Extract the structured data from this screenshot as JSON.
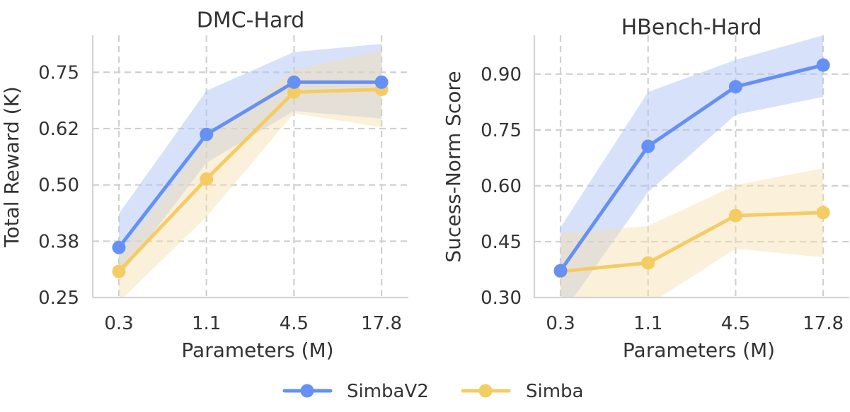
{
  "colors": {
    "SimbaV2": "#6590F5",
    "Simba": "#F5CC64",
    "SimbaV2_band": "#AFC3F5",
    "Simba_band": "#F6DFAE",
    "grid": "#d0d0d0",
    "text": "#333333"
  },
  "legend": {
    "position": "bottom-center",
    "items": [
      {
        "label": "SimbaV2",
        "series": "SimbaV2"
      },
      {
        "label": "Simba",
        "series": "Simba"
      }
    ]
  },
  "chart_data": [
    {
      "type": "line",
      "title": "DMC-Hard",
      "xlabel": "Parameters (M)",
      "ylabel": "Total Reward (K)",
      "categories": [
        "0.3",
        "1.1",
        "4.5",
        "17.8"
      ],
      "yticks": [
        0.25,
        0.375,
        0.5,
        0.625,
        0.75
      ],
      "ytick_labels": [
        "0.25",
        "0.38",
        "0.50",
        "0.62",
        "0.75"
      ],
      "ylim": [
        0.25,
        0.832
      ],
      "grid": true,
      "series": [
        {
          "name": "SimbaV2",
          "values": [
            0.361,
            0.612,
            0.728,
            0.728
          ],
          "band_upper": [
            0.436,
            0.709,
            0.795,
            0.813
          ],
          "band_lower": [
            0.294,
            0.549,
            0.664,
            0.647
          ]
        },
        {
          "name": "Simba",
          "values": [
            0.308,
            0.513,
            0.706,
            0.712
          ],
          "band_upper": [
            0.345,
            0.6,
            0.756,
            0.799
          ],
          "band_lower": [
            0.24,
            0.429,
            0.659,
            0.628
          ]
        }
      ]
    },
    {
      "type": "line",
      "title": "HBench-Hard",
      "xlabel": "Parameters (M)",
      "ylabel": "Sucess-Norm Score",
      "categories": [
        "0.3",
        "1.1",
        "4.5",
        "17.8"
      ],
      "yticks": [
        0.3,
        0.45,
        0.6,
        0.75,
        0.9
      ],
      "ytick_labels": [
        "0.30",
        "0.45",
        "0.60",
        "0.75",
        "0.90"
      ],
      "ylim": [
        0.3,
        1.004
      ],
      "grid": true,
      "series": [
        {
          "name": "SimbaV2",
          "values": [
            0.372,
            0.706,
            0.866,
            0.924
          ],
          "band_upper": [
            0.488,
            0.852,
            0.938,
            1.004
          ],
          "band_lower": [
            0.25,
            0.583,
            0.791,
            0.839
          ]
        },
        {
          "name": "Simba",
          "values": [
            0.37,
            0.393,
            0.52,
            0.528
          ],
          "band_upper": [
            0.473,
            0.492,
            0.602,
            0.647
          ],
          "band_lower": [
            0.2,
            0.28,
            0.431,
            0.408
          ]
        }
      ]
    }
  ]
}
